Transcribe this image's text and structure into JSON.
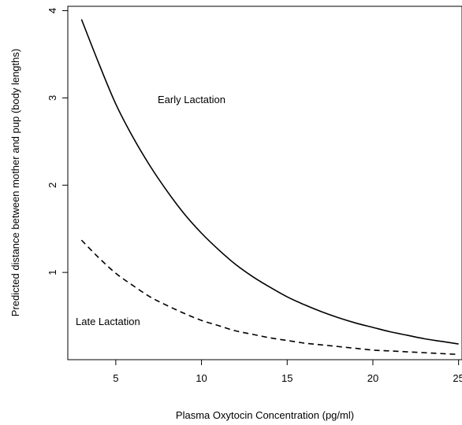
{
  "chart_data": {
    "type": "line",
    "title": "",
    "xlabel": "Plasma Oxytocin Concentration (pg/ml)",
    "ylabel": "Predicted distance between mother and pup (body lengths)",
    "xlim": [
      2.2,
      25.2
    ],
    "ylim": [
      0,
      4.05
    ],
    "xticks": [
      5,
      10,
      15,
      20,
      25
    ],
    "yticks": [
      1,
      2,
      3,
      4
    ],
    "grid": false,
    "legend": "none",
    "annotations": [
      {
        "text": "Early Lactation",
        "series": "Early Lactation"
      },
      {
        "text": "Late Lactation",
        "series": "Late Lactation"
      }
    ],
    "series": [
      {
        "name": "Early Lactation",
        "line_style": "solid",
        "x": [
          3,
          4,
          5,
          6,
          7,
          8,
          9,
          10,
          11,
          12,
          13,
          14,
          15,
          16,
          17,
          18,
          19,
          20,
          21,
          22,
          23,
          24,
          25
        ],
        "y": [
          3.9,
          3.4,
          2.93,
          2.55,
          2.22,
          1.93,
          1.67,
          1.45,
          1.26,
          1.09,
          0.95,
          0.83,
          0.72,
          0.63,
          0.55,
          0.48,
          0.42,
          0.37,
          0.32,
          0.28,
          0.24,
          0.21,
          0.18
        ]
      },
      {
        "name": "Late Lactation",
        "line_style": "dashed",
        "x": [
          3,
          4,
          5,
          6,
          7,
          8,
          9,
          10,
          11,
          12,
          13,
          14,
          15,
          16,
          17,
          18,
          19,
          20,
          21,
          22,
          23,
          24,
          25
        ],
        "y": [
          1.37,
          1.17,
          0.99,
          0.85,
          0.72,
          0.62,
          0.53,
          0.45,
          0.39,
          0.33,
          0.29,
          0.25,
          0.22,
          0.19,
          0.17,
          0.15,
          0.13,
          0.11,
          0.1,
          0.09,
          0.08,
          0.07,
          0.06
        ]
      }
    ]
  }
}
